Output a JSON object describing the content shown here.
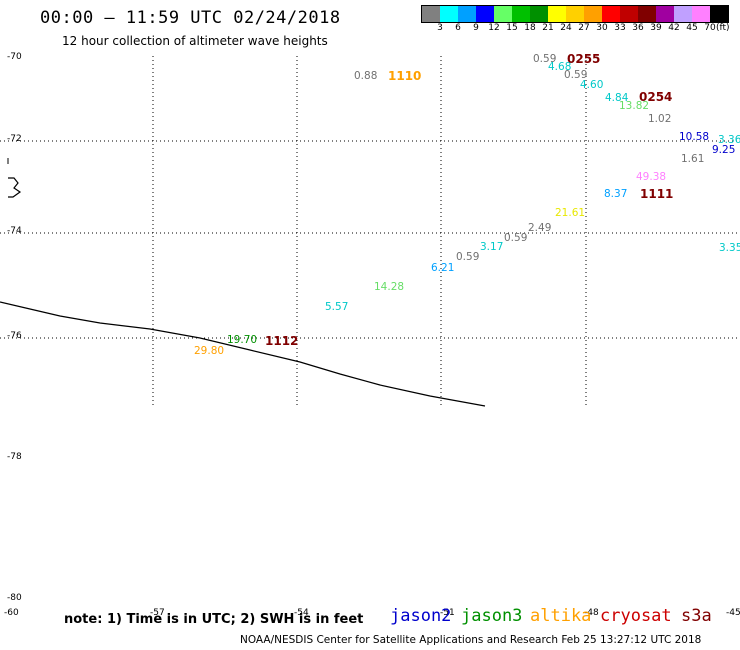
{
  "header": {
    "title": "00:00 – 11:59 UTC 02/24/2018",
    "subtitle": "12 hour collection of altimeter wave heights"
  },
  "colorbar": {
    "unit": "(ft)",
    "swatches": [
      {
        "label": "3",
        "color": "#808080"
      },
      {
        "label": "6",
        "color": "#00ffff"
      },
      {
        "label": "9",
        "color": "#00a0ff"
      },
      {
        "label": "12",
        "color": "#0000ff"
      },
      {
        "label": "15",
        "color": "#66ff66"
      },
      {
        "label": "18",
        "color": "#00c000"
      },
      {
        "label": "21",
        "color": "#009000"
      },
      {
        "label": "24",
        "color": "#ffff00"
      },
      {
        "label": "27",
        "color": "#ffd000"
      },
      {
        "label": "30",
        "color": "#ffa000"
      },
      {
        "label": "33",
        "color": "#ff0000"
      },
      {
        "label": "36",
        "color": "#c00000"
      },
      {
        "label": "39",
        "color": "#800000"
      },
      {
        "label": "42",
        "color": "#a000a0"
      },
      {
        "label": "45",
        "color": "#c0a0ff"
      },
      {
        "label": "70",
        "color": "#ff80ff"
      },
      {
        "label": "",
        "color": "#000000"
      }
    ]
  },
  "latitude_labels": [
    "-70",
    "-72",
    "-74",
    "-76",
    "-78",
    "-80",
    "-60"
  ],
  "longitude_labels": [
    "-57",
    "-54",
    "-51",
    "-48",
    "-45"
  ],
  "wave_heights": [
    {
      "text": "0.88",
      "color": "#707070"
    },
    {
      "text": "0.59",
      "color": "#707070"
    },
    {
      "text": "4.68",
      "color": "#00c8c8"
    },
    {
      "text": "0.59",
      "color": "#707070"
    },
    {
      "text": "4.60",
      "color": "#00c8c8"
    },
    {
      "text": "4.84",
      "color": "#00c8c8"
    },
    {
      "text": "13.82",
      "color": "#66dd66"
    },
    {
      "text": "1.02",
      "color": "#707070"
    },
    {
      "text": "10.58",
      "color": "#0000cc"
    },
    {
      "text": "3.36",
      "color": "#00c8c8"
    },
    {
      "text": "9.25",
      "color": "#0000cc"
    },
    {
      "text": "1.61",
      "color": "#707070"
    },
    {
      "text": "49.38",
      "color": "#ff80ff"
    },
    {
      "text": "8.37",
      "color": "#00a0ff"
    },
    {
      "text": "21.61",
      "color": "#e8e800"
    },
    {
      "text": "2.49",
      "color": "#707070"
    },
    {
      "text": "0.59",
      "color": "#707070"
    },
    {
      "text": "3.17",
      "color": "#00c8c8"
    },
    {
      "text": "0.59",
      "color": "#707070"
    },
    {
      "text": "6.21",
      "color": "#00a0ff"
    },
    {
      "text": "3.35",
      "color": "#00c8c8"
    },
    {
      "text": "14.28",
      "color": "#66dd66"
    },
    {
      "text": "5.57",
      "color": "#00c8c8"
    },
    {
      "text": "19.70",
      "color": "#009000"
    },
    {
      "text": "29.80",
      "color": "#ffa000"
    }
  ],
  "pass_times": [
    {
      "text": "1110",
      "color": "#ffa000"
    },
    {
      "text": "0255",
      "color": "#800000"
    },
    {
      "text": "0254",
      "color": "#800000"
    },
    {
      "text": "1111",
      "color": "#800000"
    },
    {
      "text": "1112",
      "color": "#800000"
    }
  ],
  "note": "note: 1) Time is in UTC; 2) SWH is in feet",
  "satellites": [
    {
      "name": "jason2",
      "color": "#0000cc"
    },
    {
      "name": "jason3",
      "color": "#009000"
    },
    {
      "name": "altika",
      "color": "#ffa000"
    },
    {
      "name": "cryosat",
      "color": "#cc0000"
    },
    {
      "name": "s3a",
      "color": "#800000"
    }
  ],
  "footer": "NOAA/NESDIS Center for Satellite Applications and Research    Feb 25 13:27:12 UTC 2018"
}
